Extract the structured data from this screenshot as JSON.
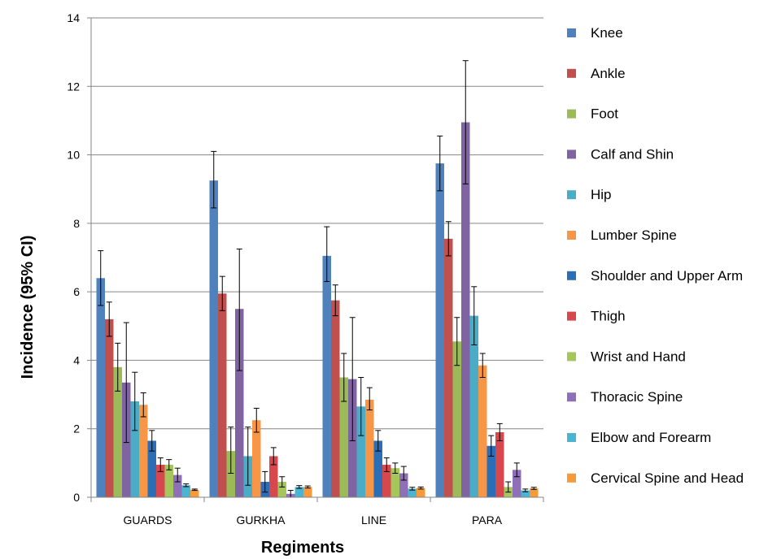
{
  "chart_data": {
    "type": "bar",
    "xlabel": "Regiments",
    "ylabel": "Incidence (95% CI)",
    "ylim": [
      0,
      14
    ],
    "yticks": [
      "0",
      "2",
      "4",
      "6",
      "8",
      "10",
      "12",
      "14"
    ],
    "grid": true,
    "legend_position": "right",
    "error_bars": true,
    "categories": [
      "GUARDS",
      "GURKHA",
      "LINE",
      "PARA"
    ],
    "series": [
      {
        "name": "Knee",
        "color": "#4F81BD",
        "values": [
          6.4,
          9.25,
          7.05,
          9.75
        ],
        "lower": [
          5.6,
          8.45,
          6.3,
          8.95
        ],
        "upper": [
          7.2,
          10.1,
          7.9,
          10.55
        ]
      },
      {
        "name": "Ankle",
        "color": "#C0504D",
        "values": [
          5.2,
          5.95,
          5.75,
          7.55
        ],
        "lower": [
          4.7,
          5.45,
          5.3,
          7.05
        ],
        "upper": [
          5.7,
          6.45,
          6.2,
          8.05
        ]
      },
      {
        "name": "Foot",
        "color": "#9BBB59",
        "values": [
          3.8,
          1.35,
          3.5,
          4.55
        ],
        "lower": [
          3.1,
          0.7,
          2.8,
          3.85
        ],
        "upper": [
          4.5,
          2.05,
          4.2,
          5.25
        ]
      },
      {
        "name": "Calf and Shin",
        "color": "#8064A2",
        "values": [
          3.35,
          5.5,
          3.45,
          10.95
        ],
        "lower": [
          1.6,
          3.7,
          1.65,
          9.15
        ],
        "upper": [
          5.1,
          7.25,
          5.25,
          12.75
        ]
      },
      {
        "name": "Hip",
        "color": "#4BACC6",
        "values": [
          2.8,
          1.2,
          2.65,
          5.3
        ],
        "lower": [
          1.95,
          0.35,
          1.8,
          4.45
        ],
        "upper": [
          3.65,
          2.05,
          3.5,
          6.15
        ]
      },
      {
        "name": "Lumber Spine",
        "color": "#F79646",
        "values": [
          2.7,
          2.25,
          2.85,
          3.85
        ],
        "lower": [
          2.35,
          1.9,
          2.55,
          3.5
        ],
        "upper": [
          3.05,
          2.6,
          3.2,
          4.2
        ]
      },
      {
        "name": "Shoulder and Upper Arm",
        "color": "#2C6EB5",
        "values": [
          1.65,
          0.45,
          1.65,
          1.5
        ],
        "lower": [
          1.35,
          0.15,
          1.35,
          1.2
        ],
        "upper": [
          1.95,
          0.75,
          1.95,
          1.8
        ]
      },
      {
        "name": "Thigh",
        "color": "#D7484E",
        "values": [
          0.95,
          1.2,
          0.95,
          1.9
        ],
        "lower": [
          0.75,
          0.95,
          0.75,
          1.65
        ],
        "upper": [
          1.15,
          1.45,
          1.15,
          2.15
        ]
      },
      {
        "name": "Wrist and Hand",
        "color": "#A4C65A",
        "values": [
          0.95,
          0.45,
          0.85,
          0.3
        ],
        "lower": [
          0.8,
          0.3,
          0.7,
          0.15
        ],
        "upper": [
          1.1,
          0.6,
          1.0,
          0.45
        ]
      },
      {
        "name": "Thoracic Spine",
        "color": "#8F6FB8",
        "values": [
          0.65,
          0.1,
          0.7,
          0.8
        ],
        "lower": [
          0.45,
          0.0,
          0.5,
          0.6
        ],
        "upper": [
          0.85,
          0.2,
          0.9,
          1.0
        ]
      },
      {
        "name": "Elbow and Forearm",
        "color": "#4BB5D1",
        "values": [
          0.35,
          0.3,
          0.25,
          0.2
        ],
        "lower": [
          0.31,
          0.26,
          0.21,
          0.16
        ],
        "upper": [
          0.39,
          0.34,
          0.29,
          0.24
        ]
      },
      {
        "name": "Cervical Spine and Head",
        "color": "#F79A3A",
        "values": [
          0.22,
          0.3,
          0.27,
          0.26
        ],
        "lower": [
          0.2,
          0.27,
          0.24,
          0.23
        ],
        "upper": [
          0.24,
          0.33,
          0.3,
          0.29
        ]
      }
    ]
  }
}
